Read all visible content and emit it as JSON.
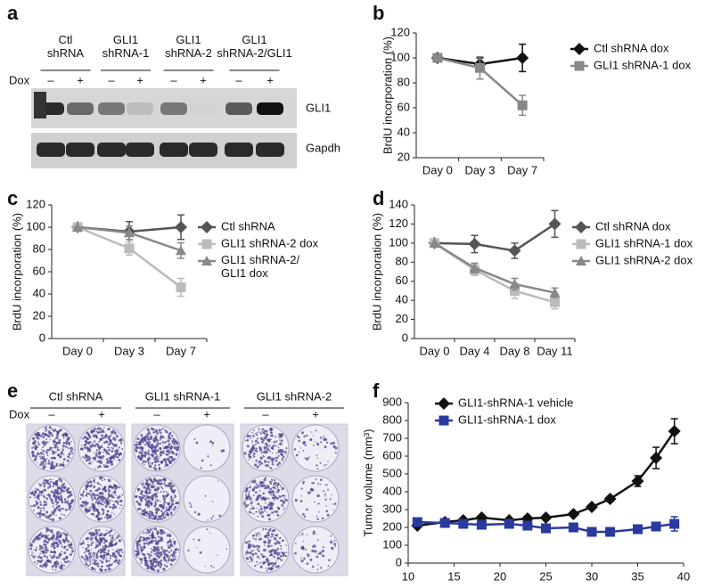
{
  "panel_labels": [
    "a",
    "b",
    "c",
    "d",
    "e",
    "f"
  ],
  "blot": {
    "groups": [
      "Ctl\nshRNA",
      "GLI1\nshRNA-1",
      "GLI1\nshRNA-2",
      "GLI1\nshRNA-2/GLI1"
    ],
    "dox_label": "Dox",
    "lanes": [
      "–",
      "+",
      "–",
      "+",
      "–",
      "+",
      "–",
      "+"
    ],
    "bands": [
      "GLI1",
      "Gapdh"
    ]
  },
  "colony": {
    "groups": [
      "Ctl shRNA",
      "GLI1 shRNA-1",
      "GLI1 shRNA-2"
    ],
    "dox_label": "Dox",
    "lanes": [
      "–",
      "+",
      "–",
      "+",
      "–",
      "+"
    ]
  },
  "chart_data": [
    {
      "type": "line",
      "y_label": "BrdU incorporation (%)",
      "categories": [
        "Day 0",
        "Day 3",
        "Day 7"
      ],
      "ylim": [
        20,
        120
      ],
      "yticks": [
        20,
        40,
        60,
        80,
        100,
        120
      ],
      "series": [
        {
          "name": "Ctl shRNA dox",
          "color": "#111111",
          "marker": "diamond",
          "values": [
            100,
            95,
            100
          ],
          "errors": [
            0,
            5,
            11
          ]
        },
        {
          "name": "GLI1 shRNA-1 dox",
          "color": "#888888",
          "marker": "square",
          "values": [
            100,
            92,
            62
          ],
          "errors": [
            0,
            9,
            8
          ]
        }
      ]
    },
    {
      "type": "line",
      "y_label": "BrdU incorporation (%)",
      "categories": [
        "Day 0",
        "Day 3",
        "Day 7"
      ],
      "ylim": [
        0,
        120
      ],
      "yticks": [
        0,
        20,
        40,
        60,
        80,
        100,
        120
      ],
      "series": [
        {
          "name": "Ctl shRNA",
          "color": "#555555",
          "marker": "diamond",
          "values": [
            100,
            96,
            100
          ],
          "errors": [
            0,
            9,
            11
          ]
        },
        {
          "name": "GLI1 shRNA-2 dox",
          "color": "#bbbbbb",
          "marker": "square",
          "values": [
            100,
            81,
            46
          ],
          "errors": [
            0,
            6,
            8
          ]
        },
        {
          "name": "GLI1 shRNA-2/\nGLI1 dox",
          "color": "#888888",
          "marker": "triangle",
          "values": [
            100,
            95,
            79
          ],
          "errors": [
            0,
            6,
            7
          ]
        }
      ]
    },
    {
      "type": "line",
      "y_label": "BrdU incorporation (%)",
      "categories": [
        "Day 0",
        "Day 4",
        "Day 8",
        "Day 11"
      ],
      "ylim": [
        0,
        140
      ],
      "yticks": [
        0,
        20,
        40,
        60,
        80,
        100,
        120,
        140
      ],
      "series": [
        {
          "name": "Ctl shRNA dox",
          "color": "#555555",
          "marker": "diamond",
          "values": [
            100,
            99,
            92,
            120
          ],
          "errors": [
            0,
            9,
            8,
            14
          ]
        },
        {
          "name": "GLI1 shRNA-1 dox",
          "color": "#bbbbbb",
          "marker": "square",
          "values": [
            100,
            72,
            50,
            38
          ],
          "errors": [
            0,
            6,
            8,
            7
          ]
        },
        {
          "name": "GLI1 shRNA-2 dox",
          "color": "#888888",
          "marker": "triangle",
          "values": [
            100,
            74,
            57,
            48
          ],
          "errors": [
            0,
            5,
            6,
            5
          ]
        }
      ]
    },
    {
      "type": "line",
      "y_label": "Tumor volume (mm³)",
      "x": [
        11,
        14,
        16,
        18,
        21,
        23,
        25,
        28,
        30,
        32,
        35,
        37,
        39
      ],
      "xlim": [
        10,
        40
      ],
      "xticks": [
        10,
        15,
        20,
        25,
        30,
        35,
        40
      ],
      "ylim": [
        0,
        900
      ],
      "yticks": [
        0,
        100,
        200,
        300,
        400,
        500,
        600,
        700,
        800,
        900
      ],
      "series": [
        {
          "name": "GLI1-shRNA-1 vehicle",
          "color": "#111111",
          "marker": "diamond",
          "values": [
            210,
            230,
            240,
            255,
            240,
            250,
            255,
            275,
            315,
            360,
            460,
            590,
            740
          ],
          "errors": [
            10,
            10,
            10,
            10,
            10,
            10,
            10,
            10,
            12,
            15,
            30,
            60,
            70
          ]
        },
        {
          "name": "GLI1-shRNA-1 dox",
          "color": "#2b3a9e",
          "marker": "square",
          "values": [
            230,
            225,
            220,
            215,
            220,
            210,
            195,
            200,
            175,
            175,
            190,
            205,
            220
          ],
          "errors": [
            20,
            15,
            15,
            15,
            15,
            15,
            15,
            15,
            15,
            15,
            20,
            20,
            40
          ]
        }
      ]
    }
  ]
}
